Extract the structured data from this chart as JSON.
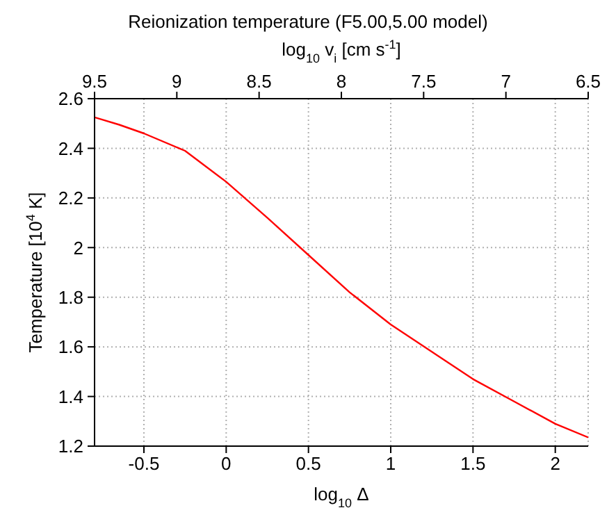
{
  "chart_data": {
    "type": "line",
    "title": "Reionization temperature (F5.00,5.00 model)",
    "xlabel": "log$_{10}$ Δ",
    "ylabel": "Temperature [10$^{4}$ K]",
    "x2label": "log$_{10}$ v$_{i}$ [cm s$^{-1}$]",
    "x": [
      -0.8,
      -0.65,
      -0.5,
      -0.25,
      0,
      0.25,
      0.5,
      0.75,
      1,
      1.25,
      1.5,
      1.75,
      2,
      2.2
    ],
    "series": [
      {
        "color": "#ff0000",
        "values": [
          2.525,
          2.495,
          2.46,
          2.39,
          2.265,
          2.12,
          1.97,
          1.82,
          1.69,
          1.58,
          1.47,
          1.38,
          1.29,
          1.235
        ]
      }
    ],
    "xlim": [
      -0.8,
      2.2
    ],
    "xticks": [
      -0.5,
      0,
      0.5,
      1,
      1.5,
      2
    ],
    "x2lim": [
      9.5,
      6.5
    ],
    "x2ticks": [
      9.5,
      9,
      8.5,
      8,
      7.5,
      7,
      6.5
    ],
    "ylim": [
      1.2,
      2.6
    ],
    "yticks": [
      1.2,
      1.4,
      1.6,
      1.8,
      2,
      2.2,
      2.4,
      2.6
    ],
    "grid": true,
    "legend": false,
    "marker": "none",
    "line_style": "solid"
  }
}
